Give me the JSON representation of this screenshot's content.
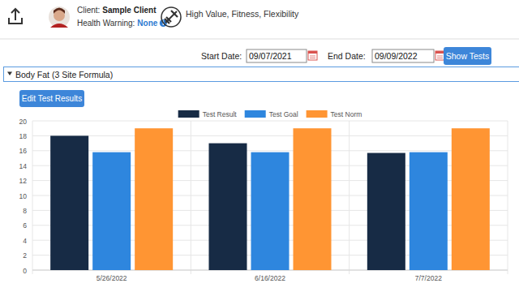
{
  "header": {
    "client_label": "Client:",
    "client_name": "Sample Client",
    "health_label": "Health Warning:",
    "health_value": "None",
    "tags": "High Value, Fitness, Flexibility"
  },
  "filters": {
    "start_label": "Start Date:",
    "start_date": "09/07/2021",
    "end_label": "End Date:",
    "end_date": "09/09/2022",
    "button": "Show Tests"
  },
  "section": {
    "title": "Body Fat (3 Site Formula)",
    "button": "Edit Test Results"
  },
  "chart_data": {
    "type": "bar",
    "categories": [
      "5/26/2022",
      "6/16/2022",
      "7/7/2022"
    ],
    "series": [
      {
        "name": "Test Result",
        "color": "#172b45",
        "values": [
          18,
          17,
          15.7
        ]
      },
      {
        "name": "Test Goal",
        "color": "#2e86de",
        "values": [
          15.8,
          15.8,
          15.8
        ]
      },
      {
        "name": "Test Norm",
        "color": "#ff9533",
        "values": [
          19,
          19,
          19
        ]
      }
    ],
    "ylim": [
      0,
      20
    ],
    "yticks": [
      0,
      2,
      4,
      6,
      8,
      10,
      12,
      14,
      16,
      18,
      20
    ],
    "grid": true,
    "legend": "top"
  }
}
